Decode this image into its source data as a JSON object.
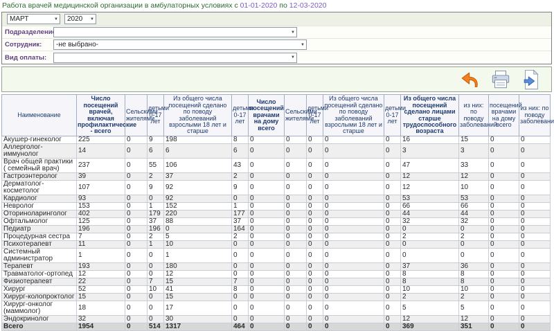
{
  "page": {
    "title": "Работа врачей медицинской организации в амбулаторных условиях с",
    "date_from": "01-01-2020",
    "date_sep": "по",
    "date_to": "12-03-2020"
  },
  "filters": {
    "month": "МАРТ",
    "year": "2020",
    "department_label": "Подразделение:",
    "department_value": "",
    "employee_label": "Сотрудник:",
    "employee_value": "-не выбрано-",
    "payment_label": "Вид оплаты:",
    "payment_value": ""
  },
  "toolbar": {
    "icons": [
      "undo-icon",
      "print-icon",
      "export-icon"
    ]
  },
  "colors": {
    "title_green": "#2e6b2e",
    "date_purple": "#7a5cc5",
    "label_purple": "#604080",
    "header_navy": "#1e3a6e",
    "total_row_bg": "#d8d8d8"
  },
  "table": {
    "columns": [
      "Наименование",
      "Число посещений врачей, включая профилактические - всего",
      "Сельскими жителями",
      "детьми 0-17 лет",
      "Из общего числа посещений сделано по поводу заболеваний взрослыми 18 лет и старше",
      "детьми 0-17 лет",
      "Число посещений врачами на дому всего",
      "Сельскими жителями",
      "детьми 0-17 лет",
      "Из общего числа посещений сделано по поводу заболеваний взрослыми 18 лет и старше",
      "детьми 0-17 лет",
      "Из общего числа посещений сделано лицами старше трудоспособного возраста",
      "из них: по поводу заболеваний",
      "посещений врачами на дому всего",
      "из них: по поводу заболеваний"
    ],
    "rows": [
      {
        "name": "Акушер-гинеколог",
        "values": [
          225,
          0,
          9,
          198,
          8,
          0,
          0,
          0,
          0,
          0,
          16,
          15,
          0,
          0
        ]
      },
      {
        "name": "Аллерголог-иммунолог",
        "values": [
          14,
          0,
          6,
          6,
          6,
          0,
          0,
          0,
          0,
          0,
          3,
          3,
          0,
          0
        ]
      },
      {
        "name": "Врач общей практики ( семейный врач)",
        "values": [
          237,
          0,
          55,
          106,
          43,
          0,
          0,
          0,
          0,
          0,
          47,
          33,
          0,
          0
        ]
      },
      {
        "name": "Гастроэнтеролог",
        "values": [
          39,
          0,
          2,
          37,
          2,
          0,
          0,
          0,
          0,
          0,
          12,
          12,
          0,
          0
        ]
      },
      {
        "name": "Дерматолог-косметолог",
        "values": [
          107,
          0,
          9,
          92,
          9,
          0,
          0,
          0,
          0,
          0,
          12,
          10,
          0,
          0
        ]
      },
      {
        "name": "Кардиолог",
        "values": [
          93,
          0,
          0,
          92,
          0,
          0,
          0,
          0,
          0,
          0,
          53,
          53,
          0,
          0
        ]
      },
      {
        "name": "Невролог",
        "values": [
          153,
          0,
          1,
          152,
          1,
          0,
          0,
          0,
          0,
          0,
          66,
          66,
          0,
          0
        ]
      },
      {
        "name": "Оториноларинголог",
        "values": [
          402,
          0,
          179,
          220,
          177,
          0,
          0,
          0,
          0,
          0,
          44,
          44,
          0,
          0
        ]
      },
      {
        "name": "Офтальмолог",
        "values": [
          125,
          0,
          37,
          88,
          37,
          0,
          0,
          0,
          0,
          0,
          32,
          32,
          0,
          0
        ]
      },
      {
        "name": "Педиатр",
        "values": [
          196,
          0,
          196,
          0,
          164,
          0,
          0,
          0,
          0,
          0,
          0,
          0,
          0,
          0
        ]
      },
      {
        "name": "Процедурная сестра",
        "values": [
          7,
          0,
          2,
          5,
          2,
          0,
          0,
          0,
          0,
          0,
          2,
          2,
          0,
          0
        ]
      },
      {
        "name": "Психотерапевт",
        "values": [
          11,
          0,
          1,
          10,
          0,
          0,
          0,
          0,
          0,
          0,
          0,
          0,
          0,
          0
        ]
      },
      {
        "name": "Системный администратор",
        "values": [
          1,
          0,
          0,
          1,
          0,
          0,
          0,
          0,
          0,
          0,
          0,
          0,
          0,
          0
        ]
      },
      {
        "name": "Терапевт",
        "values": [
          193,
          0,
          0,
          180,
          0,
          0,
          0,
          0,
          0,
          0,
          37,
          36,
          0,
          0
        ]
      },
      {
        "name": "Травматолог-ортопед",
        "values": [
          12,
          0,
          0,
          12,
          0,
          0,
          0,
          0,
          0,
          0,
          8,
          8,
          0,
          0
        ]
      },
      {
        "name": "Физиотерапевт",
        "values": [
          22,
          0,
          7,
          15,
          7,
          0,
          0,
          0,
          0,
          0,
          8,
          8,
          0,
          0
        ]
      },
      {
        "name": "Хирург",
        "values": [
          52,
          0,
          10,
          41,
          8,
          0,
          0,
          0,
          0,
          0,
          10,
          10,
          0,
          0
        ]
      },
      {
        "name": "Хирург-колопроктолог",
        "values": [
          15,
          0,
          0,
          15,
          0,
          0,
          0,
          0,
          0,
          0,
          2,
          2,
          0,
          0
        ]
      },
      {
        "name": "Хирург-онколог (маммолог)",
        "values": [
          18,
          0,
          0,
          17,
          0,
          0,
          0,
          0,
          0,
          0,
          5,
          5,
          0,
          0
        ]
      },
      {
        "name": "Эндокринолог",
        "values": [
          32,
          0,
          0,
          30,
          0,
          0,
          0,
          0,
          0,
          0,
          12,
          12,
          0,
          0
        ]
      }
    ],
    "total": {
      "name": "Всего",
      "values": [
        1954,
        0,
        514,
        1317,
        464,
        0,
        0,
        0,
        0,
        0,
        369,
        351,
        0,
        0
      ]
    }
  }
}
